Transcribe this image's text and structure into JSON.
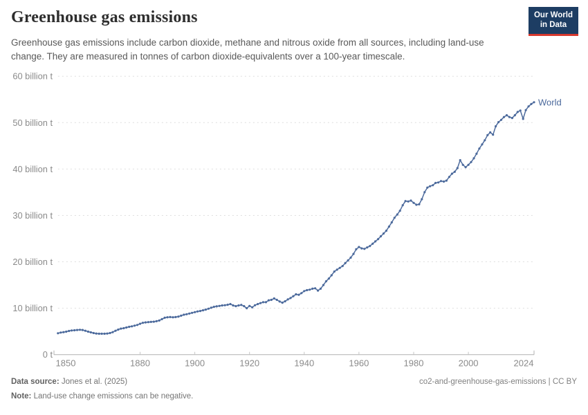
{
  "header": {
    "title": "Greenhouse gas emissions",
    "subtitle": "Greenhouse gas emissions include carbon dioxide, methane and nitrous oxide from all sources, including land-use change. They are measured in tonnes of carbon dioxide-equivalents over a 100-year timescale.",
    "logo": {
      "line1": "Our World",
      "line2": "in Data",
      "bg_color": "#1d3d63",
      "accent_color": "#d7382e"
    }
  },
  "chart_data": {
    "type": "line",
    "title": "Greenhouse gas emissions",
    "xlabel": "",
    "ylabel": "",
    "unit": "billion t",
    "grid": "horizontal-dashed",
    "legend_position": "end-of-line",
    "xlim": [
      1850,
      2024
    ],
    "ylim": [
      0,
      60
    ],
    "x_ticks": [
      1850,
      1880,
      1900,
      1920,
      1940,
      1960,
      1980,
      2000,
      2024
    ],
    "y_ticks": [
      {
        "value": 0,
        "label": "0 t"
      },
      {
        "value": 10,
        "label": "10 billion t"
      },
      {
        "value": 20,
        "label": "20 billion t"
      },
      {
        "value": 30,
        "label": "30 billion t"
      },
      {
        "value": 40,
        "label": "40 billion t"
      },
      {
        "value": 50,
        "label": "50 billion t"
      },
      {
        "value": 60,
        "label": "60 billion t"
      }
    ],
    "series": [
      {
        "name": "World",
        "color": "#4C6A9C",
        "x_start": 1850,
        "x_step": 1,
        "values": [
          4.6,
          4.75,
          4.85,
          4.95,
          5.1,
          5.2,
          5.25,
          5.3,
          5.35,
          5.3,
          5.15,
          4.95,
          4.8,
          4.65,
          4.55,
          4.5,
          4.5,
          4.5,
          4.55,
          4.65,
          4.85,
          5.15,
          5.4,
          5.6,
          5.7,
          5.85,
          6.0,
          6.1,
          6.25,
          6.4,
          6.65,
          6.85,
          6.95,
          7.0,
          7.05,
          7.1,
          7.2,
          7.35,
          7.65,
          7.95,
          8.05,
          8.1,
          8.05,
          8.1,
          8.2,
          8.4,
          8.6,
          8.7,
          8.85,
          9.0,
          9.15,
          9.3,
          9.4,
          9.55,
          9.7,
          9.9,
          10.1,
          10.3,
          10.4,
          10.5,
          10.6,
          10.65,
          10.75,
          10.9,
          10.6,
          10.45,
          10.6,
          10.7,
          10.45,
          10.0,
          10.5,
          10.2,
          10.65,
          10.9,
          11.1,
          11.3,
          11.3,
          11.7,
          11.8,
          12.1,
          11.8,
          11.45,
          11.2,
          11.5,
          11.9,
          12.2,
          12.6,
          13.0,
          12.9,
          13.25,
          13.7,
          13.9,
          14.0,
          14.2,
          14.3,
          13.8,
          14.2,
          15.0,
          15.8,
          16.4,
          17.1,
          17.9,
          18.3,
          18.7,
          19.1,
          19.7,
          20.3,
          20.9,
          21.7,
          22.7,
          23.2,
          22.9,
          22.8,
          23.1,
          23.4,
          23.9,
          24.4,
          24.9,
          25.5,
          26.1,
          26.7,
          27.6,
          28.5,
          29.5,
          30.2,
          31.0,
          32.2,
          33.1,
          33.0,
          33.2,
          32.7,
          32.3,
          32.4,
          33.5,
          35.0,
          36.0,
          36.3,
          36.5,
          37.0,
          37.1,
          37.4,
          37.3,
          37.5,
          38.3,
          39.0,
          39.4,
          40.2,
          41.9,
          40.9,
          40.4,
          40.9,
          41.5,
          42.3,
          43.3,
          44.4,
          45.3,
          46.2,
          47.3,
          47.9,
          47.4,
          49.2,
          50.1,
          50.6,
          51.2,
          51.6,
          51.2,
          51.0,
          51.6,
          52.3,
          52.6,
          50.8,
          52.7,
          53.5,
          54.0,
          54.4
        ]
      }
    ]
  },
  "footer": {
    "source_label": "Data source:",
    "source_value": " Jones et al. (2025)",
    "note_label": "Note:",
    "note_value": " Land-use change emissions can be negative.",
    "right_text": "co2-and-greenhouse-gas-emissions | CC BY"
  }
}
